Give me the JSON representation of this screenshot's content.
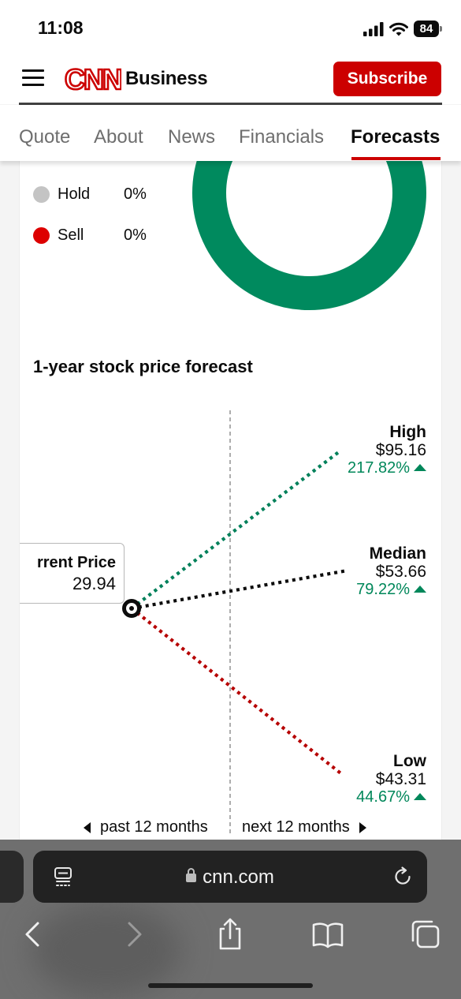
{
  "status_bar": {
    "time": "11:08",
    "battery": "84"
  },
  "header": {
    "brand_logo": "CNN",
    "brand_suffix": "Business",
    "subscribe_label": "Subscribe"
  },
  "tabs": [
    {
      "label": "Quote",
      "active": false
    },
    {
      "label": "About",
      "active": false
    },
    {
      "label": "News",
      "active": false
    },
    {
      "label": "Financials",
      "active": false
    },
    {
      "label": "Forecasts",
      "active": true
    }
  ],
  "ratings": [
    {
      "label": "Hold",
      "percent": "0%",
      "color": "#c4c4c4"
    },
    {
      "label": "Sell",
      "percent": "0%",
      "color": "#dd0000"
    }
  ],
  "donut": {
    "color": "#008a5e"
  },
  "forecast": {
    "title": "1-year stock price forecast",
    "current": {
      "label": "rrent Price",
      "value": "29.94"
    },
    "high": {
      "label": "High",
      "price": "$95.16",
      "change": "217.82%",
      "color": "#00805a"
    },
    "median": {
      "label": "Median",
      "price": "$53.66",
      "change": "79.22%",
      "color": "#0c0c0c"
    },
    "low": {
      "label": "Low",
      "price": "$43.31",
      "change": "44.67%",
      "color": "#b60000"
    },
    "past_label": "past 12 months",
    "next_label": "next 12 months"
  },
  "browser": {
    "url": "cnn.com"
  }
}
